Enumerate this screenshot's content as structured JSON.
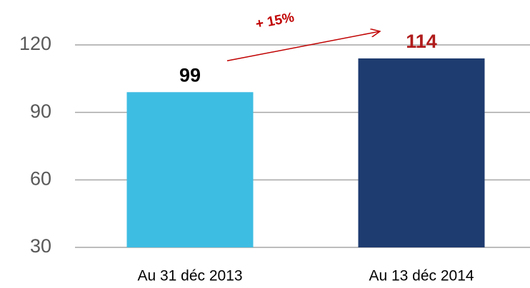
{
  "chart_data": {
    "type": "bar",
    "categories": [
      "Au 31 déc 2013",
      "Au 13 déc 2014"
    ],
    "values": [
      99,
      114
    ],
    "colors": [
      "#3ebde3",
      "#1f3c70"
    ],
    "label_colors": [
      "#000000",
      "#b01c1c"
    ],
    "annotation": "+ 15%",
    "annotation_color": "#c00000",
    "ylim": [
      30,
      120
    ],
    "yticks": [
      30,
      60,
      90,
      120
    ],
    "grid": true
  }
}
